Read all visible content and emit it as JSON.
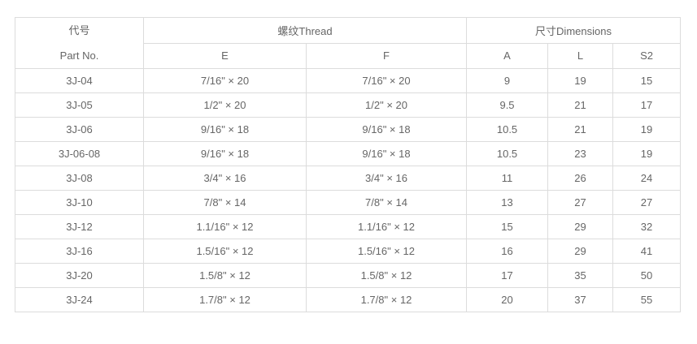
{
  "page": {
    "background_color": "#ffffff",
    "border_color": "#dcdcdc",
    "text_color": "#666666"
  },
  "table": {
    "header": {
      "part_no_cn": "代号",
      "part_no_en": "Part No.",
      "thread_group": "螺纹Thread",
      "dimensions_group": "尺寸Dimensions",
      "col_e": "E",
      "col_f": "F",
      "col_a": "A",
      "col_l": "L",
      "col_s2": "S2"
    },
    "rows": [
      {
        "part": "3J-04",
        "e": "7/16\" × 20",
        "f": "7/16\" × 20",
        "a": "9",
        "l": "19",
        "s2": "15"
      },
      {
        "part": "3J-05",
        "e": "1/2\" × 20",
        "f": "1/2\" × 20",
        "a": "9.5",
        "l": "21",
        "s2": "17"
      },
      {
        "part": "3J-06",
        "e": "9/16\" × 18",
        "f": "9/16\" × 18",
        "a": "10.5",
        "l": "21",
        "s2": "19"
      },
      {
        "part": "3J-06-08",
        "e": "9/16\" × 18",
        "f": "9/16\" × 18",
        "a": "10.5",
        "l": "23",
        "s2": "19"
      },
      {
        "part": "3J-08",
        "e": "3/4\" × 16",
        "f": "3/4\" × 16",
        "a": "11",
        "l": "26",
        "s2": "24"
      },
      {
        "part": "3J-10",
        "e": "7/8\" × 14",
        "f": "7/8\" × 14",
        "a": "13",
        "l": "27",
        "s2": "27"
      },
      {
        "part": "3J-12",
        "e": "1.1/16\" × 12",
        "f": "1.1/16\" × 12",
        "a": "15",
        "l": "29",
        "s2": "32"
      },
      {
        "part": "3J-16",
        "e": "1.5/16\" × 12",
        "f": "1.5/16\" × 12",
        "a": "16",
        "l": "29",
        "s2": "41"
      },
      {
        "part": "3J-20",
        "e": "1.5/8\" × 12",
        "f": "1.5/8\" × 12",
        "a": "17",
        "l": "35",
        "s2": "50"
      },
      {
        "part": "3J-24",
        "e": "1.7/8\" × 12",
        "f": "1.7/8\" × 12",
        "a": "20",
        "l": "37",
        "s2": "55"
      }
    ]
  }
}
